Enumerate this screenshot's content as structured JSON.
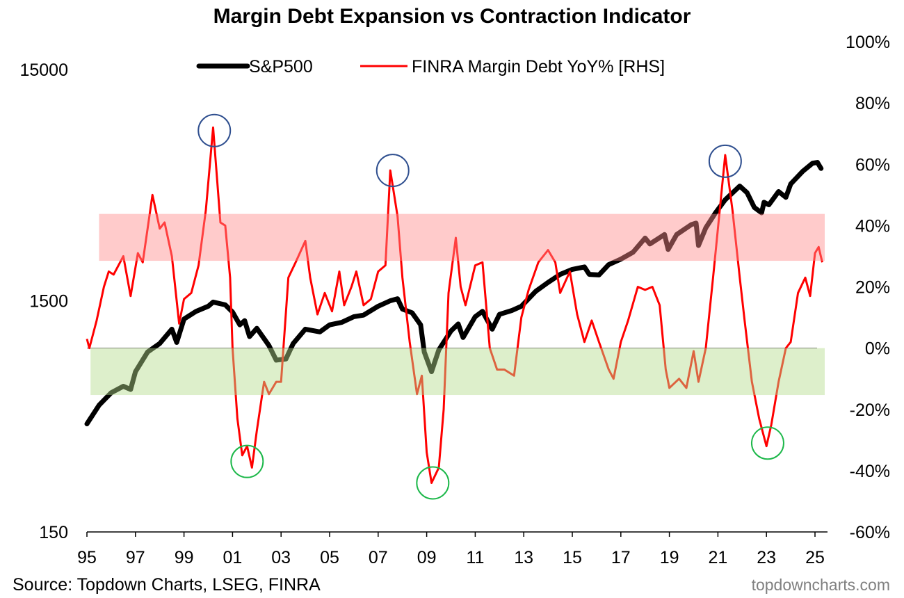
{
  "chart_data": {
    "type": "line",
    "title": "Margin Debt Expansion vs Contraction Indicator",
    "source": "Source: Topdown Charts, LSEG, FINRA",
    "watermark": "topdowncharts.com",
    "legend_position": "top-center",
    "colors": {
      "sp500": "#000000",
      "margin": "#ff0000",
      "expansion_band": "#ffc8c8",
      "contraction_band": "#dfefcf",
      "peak_circle": "#2f4f8f",
      "trough_circle": "#1db84a",
      "zero_line": "#a0a0a0"
    },
    "x_axis": {
      "range": [
        1995,
        2025.5
      ],
      "ticks": [
        1995,
        1997,
        1999,
        2001,
        2003,
        2005,
        2007,
        2009,
        2011,
        2013,
        2015,
        2017,
        2019,
        2021,
        2023,
        2025
      ],
      "tick_labels": [
        "95",
        "97",
        "99",
        "01",
        "03",
        "05",
        "07",
        "09",
        "11",
        "13",
        "15",
        "17",
        "19",
        "21",
        "23",
        "25"
      ]
    },
    "left_axis": {
      "scale": "log",
      "range": [
        150,
        15000
      ],
      "ticks": [
        150,
        1500,
        15000
      ],
      "tick_labels": [
        "150",
        "1500",
        "15000"
      ]
    },
    "right_axis": {
      "range": [
        -60,
        100
      ],
      "ticks": [
        -60,
        -40,
        -20,
        0,
        20,
        40,
        60,
        80,
        100
      ],
      "tick_labels": [
        "-60%",
        "-40%",
        "-20%",
        "0%",
        "20%",
        "40%",
        "60%",
        "80%",
        "100%"
      ]
    },
    "bands": [
      {
        "name": "expansion",
        "axis": "right",
        "from": 28.5,
        "to": 43.8,
        "x_from": 1995.5
      },
      {
        "name": "contraction",
        "axis": "right",
        "from": -15.3,
        "to": 0,
        "x_from": 1995.15
      }
    ],
    "series": [
      {
        "name": "S&P500",
        "axis": "left",
        "points": [
          [
            1995.0,
            440
          ],
          [
            1995.5,
            530
          ],
          [
            1996.0,
            600
          ],
          [
            1996.5,
            640
          ],
          [
            1996.8,
            620
          ],
          [
            1997.0,
            740
          ],
          [
            1997.5,
            900
          ],
          [
            1998.0,
            980
          ],
          [
            1998.5,
            1130
          ],
          [
            1998.7,
            990
          ],
          [
            1999.0,
            1250
          ],
          [
            1999.5,
            1350
          ],
          [
            2000.0,
            1420
          ],
          [
            2000.2,
            1480
          ],
          [
            2000.7,
            1440
          ],
          [
            2001.0,
            1340
          ],
          [
            2001.3,
            1180
          ],
          [
            2001.5,
            1230
          ],
          [
            2001.7,
            1050
          ],
          [
            2002.0,
            1140
          ],
          [
            2002.5,
            960
          ],
          [
            2002.8,
            830
          ],
          [
            2003.2,
            840
          ],
          [
            2003.5,
            980
          ],
          [
            2004.0,
            1130
          ],
          [
            2004.6,
            1100
          ],
          [
            2005.0,
            1180
          ],
          [
            2005.5,
            1210
          ],
          [
            2006.0,
            1280
          ],
          [
            2006.4,
            1300
          ],
          [
            2007.0,
            1420
          ],
          [
            2007.5,
            1500
          ],
          [
            2007.8,
            1530
          ],
          [
            2008.0,
            1380
          ],
          [
            2008.4,
            1330
          ],
          [
            2008.75,
            1180
          ],
          [
            2008.9,
            900
          ],
          [
            2009.2,
            740
          ],
          [
            2009.5,
            920
          ],
          [
            2010.0,
            1110
          ],
          [
            2010.3,
            1190
          ],
          [
            2010.5,
            1040
          ],
          [
            2011.0,
            1280
          ],
          [
            2011.3,
            1350
          ],
          [
            2011.7,
            1130
          ],
          [
            2012.0,
            1310
          ],
          [
            2012.5,
            1360
          ],
          [
            2012.9,
            1420
          ],
          [
            2013.5,
            1650
          ],
          [
            2014.0,
            1800
          ],
          [
            2014.5,
            1950
          ],
          [
            2015.0,
            2050
          ],
          [
            2015.5,
            2100
          ],
          [
            2015.7,
            1950
          ],
          [
            2016.1,
            1940
          ],
          [
            2016.5,
            2150
          ],
          [
            2017.0,
            2270
          ],
          [
            2017.5,
            2430
          ],
          [
            2018.0,
            2800
          ],
          [
            2018.2,
            2640
          ],
          [
            2018.8,
            2900
          ],
          [
            2018.95,
            2500
          ],
          [
            2019.3,
            2900
          ],
          [
            2019.9,
            3200
          ],
          [
            2020.1,
            3250
          ],
          [
            2020.2,
            2600
          ],
          [
            2020.5,
            3100
          ],
          [
            2020.9,
            3600
          ],
          [
            2021.3,
            4100
          ],
          [
            2021.9,
            4700
          ],
          [
            2022.2,
            4400
          ],
          [
            2022.5,
            3800
          ],
          [
            2022.8,
            3600
          ],
          [
            2022.9,
            4000
          ],
          [
            2023.1,
            3900
          ],
          [
            2023.5,
            4450
          ],
          [
            2023.8,
            4200
          ],
          [
            2024.0,
            4800
          ],
          [
            2024.5,
            5450
          ],
          [
            2024.9,
            5900
          ],
          [
            2025.1,
            5950
          ],
          [
            2025.25,
            5600
          ]
        ]
      },
      {
        "name": "FINRA Margin Debt YoY% [RHS]",
        "axis": "right",
        "points": [
          [
            1995.0,
            3
          ],
          [
            1995.1,
            0
          ],
          [
            1995.4,
            9
          ],
          [
            1995.7,
            20
          ],
          [
            1995.9,
            25
          ],
          [
            1996.1,
            24
          ],
          [
            1996.5,
            30
          ],
          [
            1996.8,
            17
          ],
          [
            1997.1,
            31
          ],
          [
            1997.3,
            28
          ],
          [
            1997.7,
            50
          ],
          [
            1998.0,
            39
          ],
          [
            1998.2,
            41
          ],
          [
            1998.5,
            30
          ],
          [
            1998.8,
            8
          ],
          [
            1999.0,
            16
          ],
          [
            1999.3,
            18
          ],
          [
            1999.6,
            27
          ],
          [
            1999.9,
            45
          ],
          [
            2000.2,
            72
          ],
          [
            2000.5,
            41
          ],
          [
            2000.7,
            40
          ],
          [
            2000.9,
            23
          ],
          [
            2001.0,
            0
          ],
          [
            2001.2,
            -23
          ],
          [
            2001.4,
            -35
          ],
          [
            2001.6,
            -32
          ],
          [
            2001.8,
            -39
          ],
          [
            2002.0,
            -27
          ],
          [
            2002.3,
            -11
          ],
          [
            2002.5,
            -15
          ],
          [
            2002.8,
            -11
          ],
          [
            2003.0,
            -11
          ],
          [
            2003.3,
            23
          ],
          [
            2003.6,
            28
          ],
          [
            2004.0,
            35
          ],
          [
            2004.2,
            23
          ],
          [
            2004.5,
            11
          ],
          [
            2004.8,
            18
          ],
          [
            2005.1,
            12
          ],
          [
            2005.4,
            25
          ],
          [
            2005.6,
            14
          ],
          [
            2005.9,
            20
          ],
          [
            2006.1,
            25
          ],
          [
            2006.4,
            14
          ],
          [
            2006.7,
            16
          ],
          [
            2007.0,
            25
          ],
          [
            2007.3,
            27
          ],
          [
            2007.5,
            58
          ],
          [
            2007.8,
            43
          ],
          [
            2008.0,
            23
          ],
          [
            2008.3,
            2
          ],
          [
            2008.6,
            -15
          ],
          [
            2008.8,
            -9
          ],
          [
            2009.0,
            -34
          ],
          [
            2009.2,
            -44
          ],
          [
            2009.5,
            -39
          ],
          [
            2009.7,
            -20
          ],
          [
            2009.9,
            18
          ],
          [
            2010.2,
            36
          ],
          [
            2010.4,
            20
          ],
          [
            2010.6,
            14
          ],
          [
            2011.0,
            27
          ],
          [
            2011.3,
            28
          ],
          [
            2011.6,
            0
          ],
          [
            2011.9,
            -7
          ],
          [
            2012.2,
            -7
          ],
          [
            2012.6,
            -9
          ],
          [
            2012.9,
            10
          ],
          [
            2013.2,
            19
          ],
          [
            2013.6,
            28
          ],
          [
            2014.0,
            32
          ],
          [
            2014.3,
            28
          ],
          [
            2014.5,
            18
          ],
          [
            2014.9,
            25
          ],
          [
            2015.2,
            11
          ],
          [
            2015.5,
            2
          ],
          [
            2015.8,
            9
          ],
          [
            2016.1,
            2
          ],
          [
            2016.5,
            -7
          ],
          [
            2016.7,
            -10
          ],
          [
            2017.0,
            2
          ],
          [
            2017.3,
            9
          ],
          [
            2017.7,
            20
          ],
          [
            2018.0,
            19
          ],
          [
            2018.3,
            20
          ],
          [
            2018.6,
            14
          ],
          [
            2018.85,
            -7
          ],
          [
            2019.0,
            -13
          ],
          [
            2019.4,
            -10
          ],
          [
            2019.7,
            -13
          ],
          [
            2020.0,
            -1
          ],
          [
            2020.2,
            -11
          ],
          [
            2020.5,
            0
          ],
          [
            2020.8,
            23
          ],
          [
            2021.0,
            39
          ],
          [
            2021.3,
            63
          ],
          [
            2021.6,
            45
          ],
          [
            2021.9,
            23
          ],
          [
            2022.1,
            9
          ],
          [
            2022.4,
            -11
          ],
          [
            2022.7,
            -23
          ],
          [
            2023.0,
            -32
          ],
          [
            2023.2,
            -25
          ],
          [
            2023.5,
            -11
          ],
          [
            2023.8,
            0
          ],
          [
            2024.0,
            2
          ],
          [
            2024.3,
            18
          ],
          [
            2024.6,
            23
          ],
          [
            2024.8,
            17
          ],
          [
            2025.0,
            31
          ],
          [
            2025.15,
            33
          ],
          [
            2025.3,
            28
          ]
        ]
      }
    ],
    "annotations": [
      {
        "type": "peak",
        "x": 2000.25,
        "y": 71
      },
      {
        "type": "peak",
        "x": 2007.6,
        "y": 58
      },
      {
        "type": "peak",
        "x": 2021.3,
        "y": 61
      },
      {
        "type": "trough",
        "x": 2001.6,
        "y": -37
      },
      {
        "type": "trough",
        "x": 2009.25,
        "y": -44
      },
      {
        "type": "trough",
        "x": 2023.05,
        "y": -31
      }
    ]
  }
}
